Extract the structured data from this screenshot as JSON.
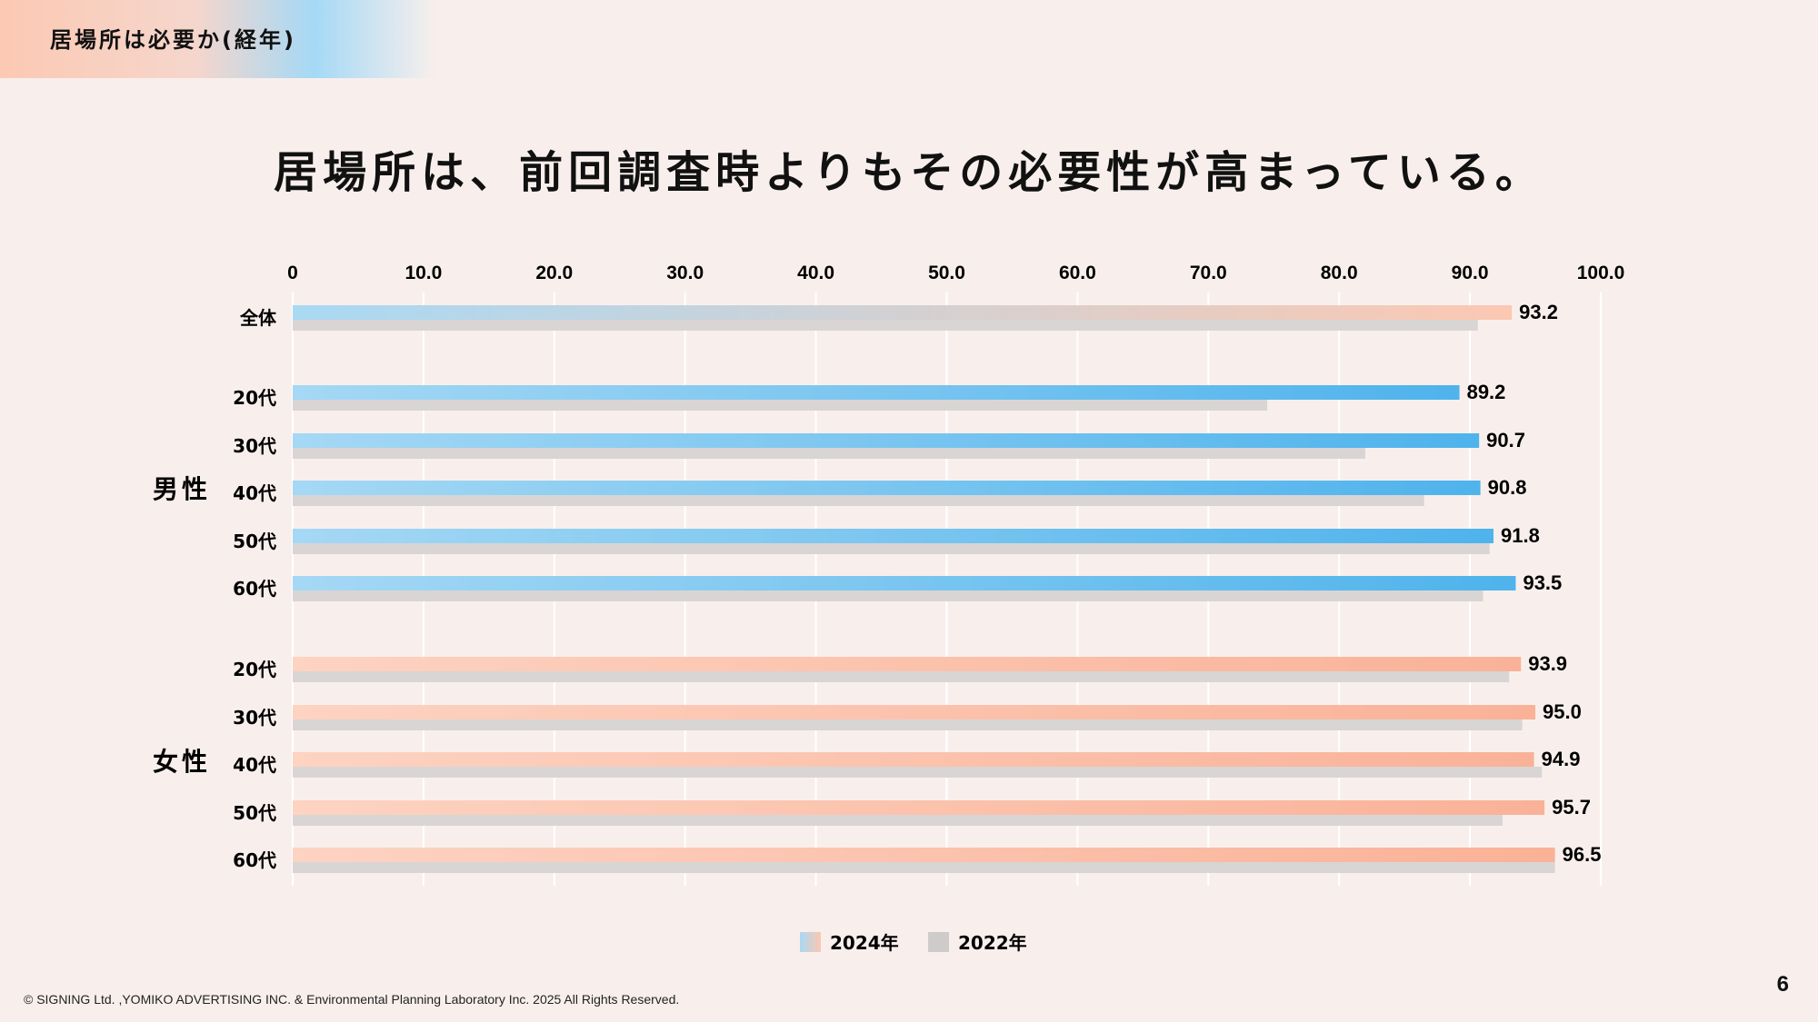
{
  "header": {
    "title": "居場所は必要か(経年)"
  },
  "headline": "居場所は、前回調査時よりもその必要性が高まっている。",
  "footer": {
    "copyright": "© SIGNING Ltd. ,YOMIKO ADVERTISING INC. & Environmental Planning Laboratory Inc. 2025 All Rights Reserved.",
    "page_number": "6"
  },
  "colors": {
    "overall_start": "#a9d9f3",
    "overall_end": "#fcc8b2",
    "male_start": "#a5d8f4",
    "male_end": "#4fb3ec",
    "female_start": "#fdd3c2",
    "female_end": "#f9b297",
    "prev": "#d9d5d4",
    "grid": "#ffffff"
  },
  "chart_data": {
    "type": "bar",
    "orientation": "horizontal",
    "xlim": [
      0,
      100
    ],
    "ticks": [
      "0",
      "10.0",
      "20.0",
      "30.0",
      "40.0",
      "50.0",
      "60.0",
      "70.0",
      "80.0",
      "90.0",
      "100.0"
    ],
    "tick_values": [
      0,
      10,
      20,
      30,
      40,
      50,
      60,
      70,
      80,
      90,
      100
    ],
    "legend": [
      {
        "label": "2024年",
        "key": "current"
      },
      {
        "label": "2022年",
        "key": "prev"
      }
    ],
    "legend_position": "bottom",
    "groups": [
      {
        "label": "",
        "style": "overall",
        "rows": [
          {
            "label": "全体",
            "v2024": 93.2,
            "v2022": 90.6
          }
        ]
      },
      {
        "label": "男性",
        "style": "male",
        "rows": [
          {
            "label": "20代",
            "v2024": 89.2,
            "v2022": 74.5
          },
          {
            "label": "30代",
            "v2024": 90.7,
            "v2022": 82.0
          },
          {
            "label": "40代",
            "v2024": 90.8,
            "v2022": 86.5
          },
          {
            "label": "50代",
            "v2024": 91.8,
            "v2022": 91.5
          },
          {
            "label": "60代",
            "v2024": 93.5,
            "v2022": 91.0
          }
        ]
      },
      {
        "label": "女性",
        "style": "female",
        "rows": [
          {
            "label": "20代",
            "v2024": 93.9,
            "v2022": 93.0
          },
          {
            "label": "30代",
            "v2024": 95.0,
            "v2022": 94.0
          },
          {
            "label": "40代",
            "v2024": 94.9,
            "v2022": 95.5
          },
          {
            "label": "50代",
            "v2024": 95.7,
            "v2022": 92.5
          },
          {
            "label": "60代",
            "v2024": 96.5,
            "v2022": 96.5
          }
        ]
      }
    ]
  }
}
